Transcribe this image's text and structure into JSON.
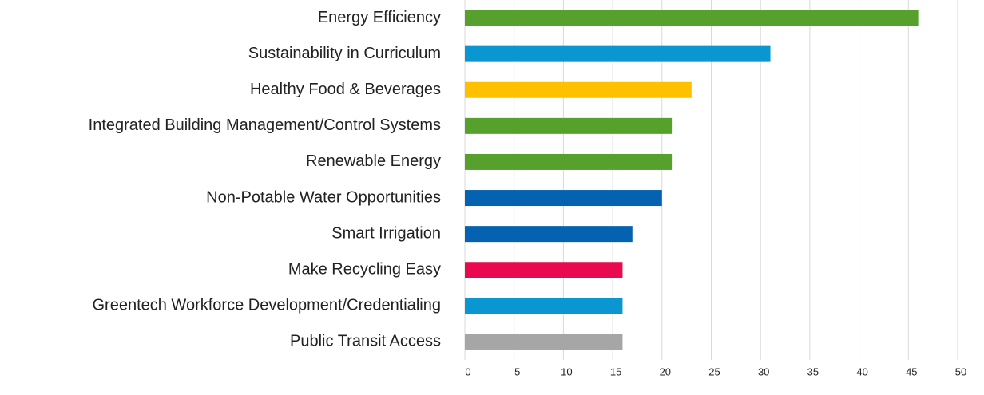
{
  "chart_data": {
    "type": "barh",
    "categories": [
      "Energy Efficiency",
      "Sustainability in Curriculum",
      "Healthy Food & Beverages",
      "Integrated Building Management/Control Systems",
      "Renewable Energy",
      "Non-Potable Water Opportunities",
      "Smart Irrigation",
      "Make Recycling Easy",
      "Greentech Workforce Development/Credentialing",
      "Public Transit Access"
    ],
    "values": [
      46,
      31,
      23,
      21,
      21,
      20,
      17,
      16,
      16,
      16
    ],
    "colors": [
      "#56a12c",
      "#0a97d1",
      "#fdc100",
      "#56a12c",
      "#56a12c",
      "#0562b0",
      "#0562b0",
      "#e8094e",
      "#0a97d1",
      "#a6a6a6"
    ],
    "xlim": [
      0,
      50
    ],
    "xticks": [
      0,
      5,
      10,
      15,
      20,
      25,
      30,
      35,
      40,
      45,
      50
    ],
    "grid": true
  }
}
